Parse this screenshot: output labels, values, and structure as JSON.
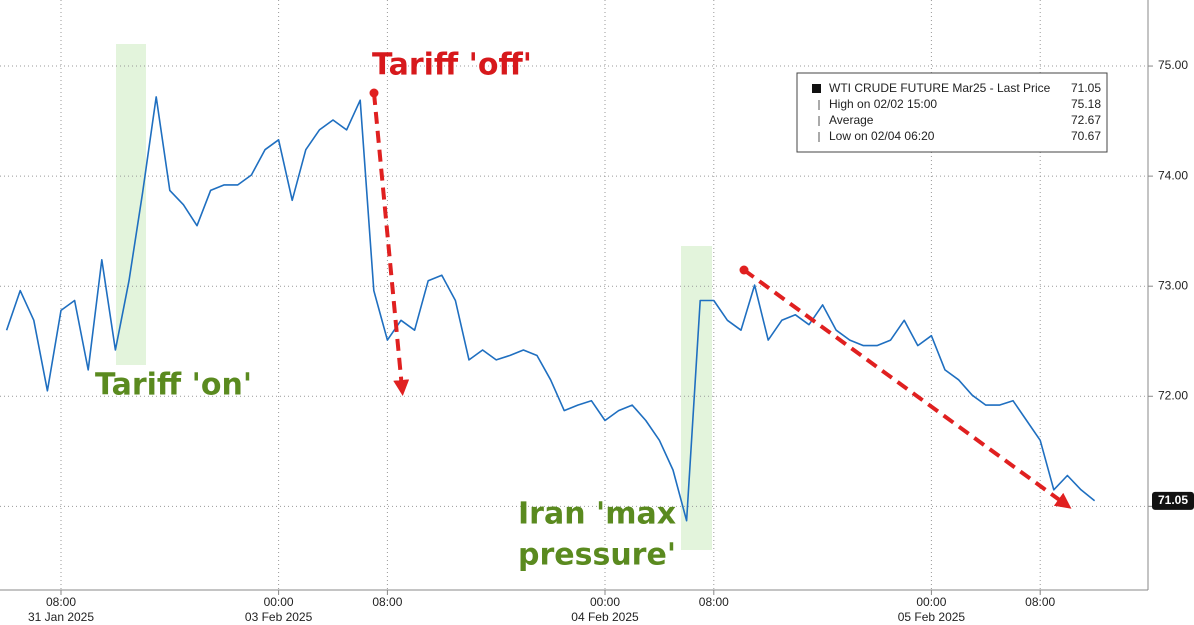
{
  "chart_data": {
    "type": "line",
    "categories": [
      null,
      null,
      null,
      null,
      "08:00",
      null,
      null,
      null,
      null,
      null,
      null,
      null,
      null,
      null,
      null,
      null,
      null,
      null,
      null,
      null,
      "00:00",
      null,
      null,
      null,
      null,
      null,
      null,
      null,
      "08:00",
      null,
      null,
      null,
      null,
      null,
      null,
      null,
      null,
      null,
      null,
      null,
      null,
      null,
      null,
      null,
      "00:00",
      null,
      null,
      null,
      null,
      null,
      null,
      null,
      "08:00",
      null,
      null,
      null,
      null,
      null,
      null,
      null,
      null,
      null,
      null,
      null,
      null,
      null,
      null,
      null,
      "00:00",
      null,
      null,
      null,
      null,
      null,
      null,
      null,
      "08:00",
      null,
      null,
      null,
      null
    ],
    "date_labels": [
      null,
      null,
      null,
      null,
      "31 Jan 2025",
      null,
      null,
      null,
      null,
      null,
      null,
      null,
      null,
      null,
      null,
      null,
      null,
      null,
      null,
      null,
      "03 Feb 2025",
      null,
      null,
      null,
      null,
      null,
      null,
      null,
      null,
      null,
      null,
      null,
      null,
      null,
      null,
      null,
      null,
      null,
      null,
      null,
      null,
      null,
      null,
      null,
      "04 Feb 2025",
      null,
      null,
      null,
      null,
      null,
      null,
      null,
      null,
      null,
      null,
      null,
      null,
      null,
      null,
      null,
      null,
      null,
      null,
      null,
      null,
      null,
      null,
      null,
      "05 Feb 2025",
      null,
      null,
      null,
      null,
      null,
      null,
      null,
      null,
      null,
      null,
      null,
      null
    ],
    "series": [
      {
        "name": "WTI CRUDE FUTURE Mar25 - Last Price",
        "color": "#1f6fc0",
        "values": [
          72.6,
          72.96,
          72.69,
          72.05,
          72.78,
          72.87,
          72.24,
          73.24,
          72.42,
          73.05,
          73.85,
          74.72,
          73.87,
          73.74,
          73.55,
          73.87,
          73.92,
          73.92,
          74.01,
          74.24,
          74.33,
          73.78,
          74.24,
          74.42,
          74.51,
          74.42,
          74.69,
          72.96,
          72.51,
          72.69,
          72.6,
          73.05,
          73.1,
          72.87,
          72.33,
          72.42,
          72.33,
          72.37,
          72.42,
          72.37,
          72.15,
          71.87,
          71.92,
          71.96,
          71.78,
          71.87,
          71.92,
          71.78,
          71.6,
          71.33,
          70.87,
          72.87,
          72.87,
          72.69,
          72.6,
          73.01,
          72.51,
          72.69,
          72.74,
          72.65,
          72.83,
          72.6,
          72.51,
          72.46,
          72.46,
          72.51,
          72.69,
          72.46,
          72.55,
          72.24,
          72.15,
          72.01,
          71.92,
          71.92,
          71.96,
          71.78,
          71.6,
          71.15,
          71.28,
          71.15,
          71.05
        ]
      }
    ],
    "last_price": 71.05,
    "stats": [
      {
        "label": "High on 02/02 15:00",
        "value": 75.18
      },
      {
        "label": "Average",
        "value": 72.67
      },
      {
        "label": "Low on 02/04 06:20",
        "value": 70.67
      }
    ],
    "ylim": [
      70.24,
      75.6
    ],
    "yticks": [
      {
        "value": 71,
        "label": "71.00"
      },
      {
        "value": 72,
        "label": "72.00"
      },
      {
        "value": 73,
        "label": "73.00"
      },
      {
        "value": 74,
        "label": "74.00"
      },
      {
        "value": 75,
        "label": "75.00"
      }
    ],
    "grid": true,
    "annotations": {
      "tariff_off": "Tariff 'off'",
      "tariff_on": "Tariff 'on'",
      "iran": [
        "Iran 'max",
        "pressure'"
      ]
    }
  }
}
